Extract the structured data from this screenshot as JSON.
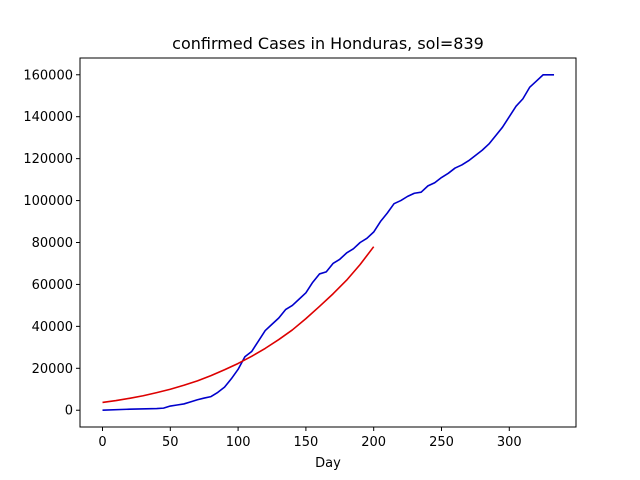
{
  "chart_data": {
    "type": "line",
    "title": "confirmed Cases in Honduras, sol=839",
    "xlabel": "Day",
    "ylabel": "",
    "xlim": [
      -16.6,
      349.2
    ],
    "ylim": [
      -8000,
      168000
    ],
    "xticks": [
      0,
      50,
      100,
      150,
      200,
      250,
      300
    ],
    "yticks": [
      0,
      20000,
      40000,
      60000,
      80000,
      100000,
      120000,
      140000,
      160000
    ],
    "grid": false,
    "legend": "none",
    "series": [
      {
        "color": "#0000cc",
        "x": [
          0,
          20,
          40,
          45,
          50,
          55,
          60,
          65,
          70,
          75,
          80,
          85,
          90,
          95,
          100,
          105,
          110,
          115,
          120,
          125,
          130,
          135,
          140,
          145,
          150,
          155,
          160,
          165,
          170,
          175,
          180,
          185,
          190,
          195,
          200,
          205,
          210,
          215,
          220,
          225,
          230,
          235,
          240,
          245,
          250,
          255,
          260,
          265,
          270,
          275,
          280,
          285,
          290,
          295,
          300,
          305,
          310,
          315,
          320,
          325,
          330,
          333
        ],
        "y": [
          0,
          500,
          800,
          1000,
          2000,
          2500,
          3000,
          4000,
          5000,
          5800,
          6500,
          8500,
          11000,
          15000,
          19500,
          25500,
          28000,
          33000,
          38000,
          41000,
          44000,
          48000,
          50000,
          53000,
          56000,
          61000,
          65000,
          66000,
          70000,
          72000,
          75000,
          77000,
          80000,
          82000,
          85000,
          90000,
          94000,
          98500,
          100000,
          102000,
          103500,
          104000,
          107000,
          108500,
          111000,
          113000,
          115500,
          117000,
          119000,
          121500,
          124000,
          127000,
          131000,
          135000,
          140000,
          145000,
          148500,
          154000,
          157000,
          160000,
          160000,
          160000
        ]
      },
      {
        "color": "#dd0000",
        "x": [
          0,
          10,
          20,
          30,
          40,
          50,
          60,
          70,
          80,
          90,
          100,
          110,
          120,
          130,
          140,
          150,
          160,
          170,
          180,
          190,
          200
        ],
        "y": [
          3700,
          4600,
          5700,
          6900,
          8400,
          10000,
          11900,
          14000,
          16500,
          19300,
          22300,
          25700,
          29500,
          33700,
          38300,
          43700,
          49500,
          55500,
          62000,
          69500,
          78000
        ]
      }
    ]
  }
}
